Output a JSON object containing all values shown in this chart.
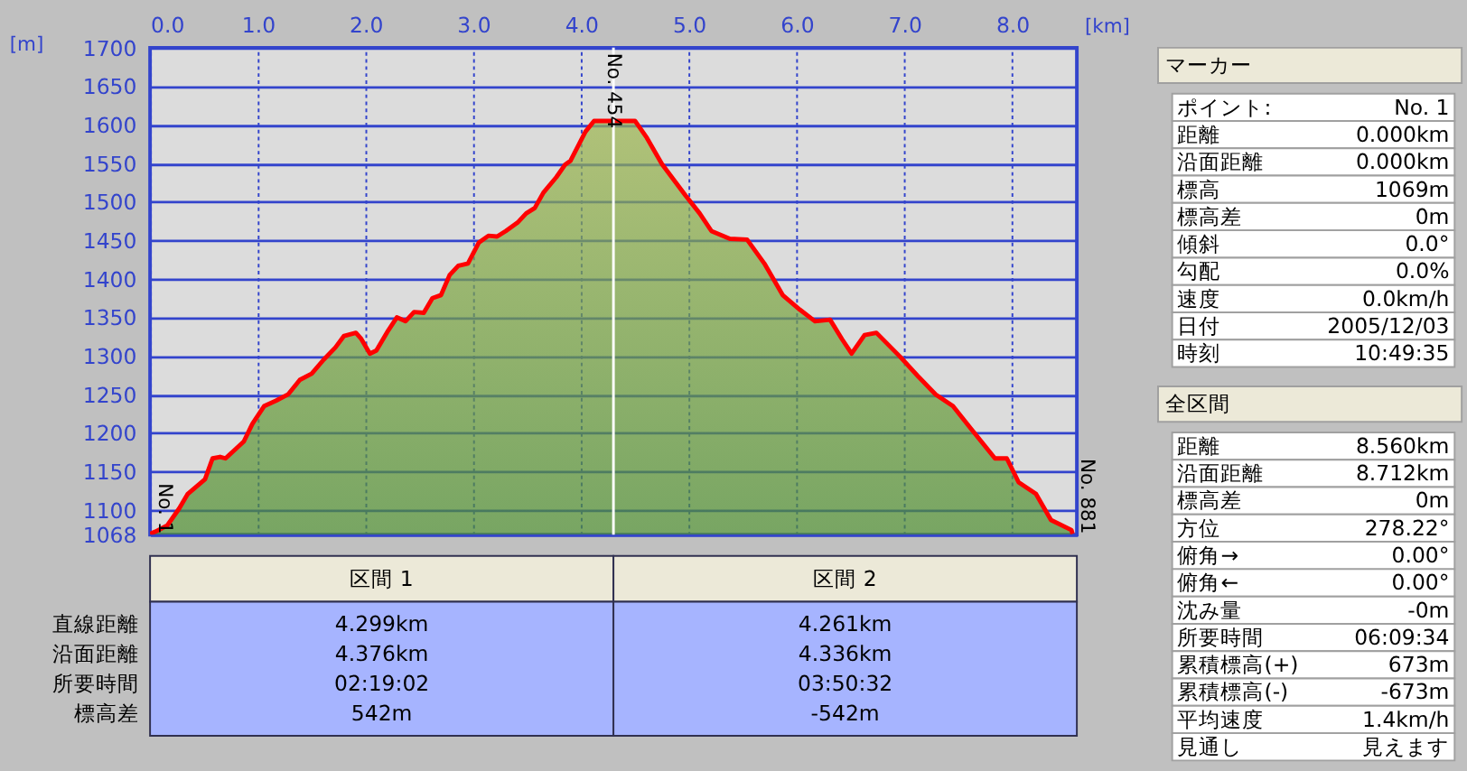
{
  "chart_data": [
    {
      "type": "area",
      "xlabel": "[km]",
      "ylabel": "[m]",
      "x": [
        0,
        0.05,
        0.16,
        0.27,
        0.35,
        0.51,
        0.58,
        0.65,
        0.7,
        0.87,
        0.95,
        1.06,
        1.17,
        1.28,
        1.39,
        1.5,
        1.61,
        1.72,
        1.8,
        1.91,
        1.96,
        2.04,
        2.1,
        2.21,
        2.29,
        2.37,
        2.45,
        2.54,
        2.62,
        2.7,
        2.78,
        2.86,
        2.95,
        3.05,
        3.14,
        3.22,
        3.3,
        3.41,
        3.49,
        3.57,
        3.65,
        3.77,
        3.85,
        3.9,
        4.04,
        4.12,
        4.5,
        4.61,
        4.75,
        4.97,
        5.1,
        5.21,
        5.38,
        5.54,
        5.7,
        5.87,
        6.03,
        6.17,
        6.31,
        6.42,
        6.51,
        6.63,
        6.74,
        6.96,
        7.13,
        7.29,
        7.45,
        7.62,
        7.84,
        7.95,
        8.06,
        8.22,
        8.36,
        8.55,
        8.56
      ],
      "series": [
        {
          "color": "#ff0000",
          "values": [
            1069,
            1072,
            1080,
            1102,
            1121,
            1140,
            1167,
            1169,
            1167,
            1189,
            1212,
            1235,
            1242,
            1250,
            1269,
            1277,
            1295,
            1311,
            1326,
            1330,
            1322,
            1303,
            1307,
            1333,
            1350,
            1345,
            1357,
            1356,
            1375,
            1379,
            1405,
            1417,
            1420,
            1447,
            1456,
            1455,
            1462,
            1473,
            1485,
            1492,
            1512,
            1532,
            1548,
            1553,
            1591,
            1605,
            1605,
            1583,
            1549,
            1508,
            1485,
            1462,
            1452,
            1451,
            1420,
            1379,
            1360,
            1345,
            1347,
            1322,
            1303,
            1327,
            1330,
            1299,
            1273,
            1250,
            1235,
            1205,
            1167,
            1167,
            1136,
            1121,
            1087,
            1074,
            1069
          ]
        }
      ],
      "xlim": [
        0,
        8.6
      ],
      "ylim": [
        1068,
        1700
      ],
      "xticks": [
        {
          "value": 0,
          "label": "0.0"
        },
        {
          "value": 1,
          "label": "1.0"
        },
        {
          "value": 2,
          "label": "2.0"
        },
        {
          "value": 3,
          "label": "3.0"
        },
        {
          "value": 4,
          "label": "4.0"
        },
        {
          "value": 5,
          "label": "5.0"
        },
        {
          "value": 6,
          "label": "6.0"
        },
        {
          "value": 7,
          "label": "7.0"
        },
        {
          "value": 8,
          "label": "8.0"
        }
      ],
      "yticks": [
        1068,
        1100,
        1150,
        1200,
        1250,
        1300,
        1350,
        1400,
        1450,
        1500,
        1550,
        1600,
        1650,
        1700
      ],
      "grid": true,
      "ref_lines": [
        {
          "axis": "x",
          "value": 4.3,
          "label": "No. 454",
          "color": "#ffffff"
        }
      ],
      "annotations": [
        {
          "text": "No. 1",
          "x": 0,
          "y": 1069
        },
        {
          "text": "No. 881",
          "x": 8.56,
          "y": 1069
        }
      ]
    },
    {
      "type": "other",
      "categories": [
        "区間 1",
        "区間 2"
      ],
      "annotations": [
        "直線距離",
        "4.299km",
        "4.261km",
        "沿面距離",
        "4.376km",
        "4.336km",
        "所要時間",
        "02:19:02",
        "03:50:32",
        "標高差",
        "542m",
        "-542m"
      ]
    },
    {
      "type": "other",
      "title": "マーカー",
      "annotations": [
        "ポイント:",
        "No. 1",
        "距離",
        "0.000km",
        "沿面距離",
        "0.000km",
        "標高",
        "1069m",
        "標高差",
        "0m",
        "傾斜",
        "0.0°",
        "勾配",
        "0.0%",
        "速度",
        "0.0km/h",
        "日付",
        "2005/12/03",
        "時刻",
        "10:49:35"
      ]
    },
    {
      "type": "other",
      "title": "全区間",
      "annotations": [
        "距離",
        "8.560km",
        "沿面距離",
        "8.712km",
        "標高差",
        "0m",
        "方位",
        "278.22°",
        "俯角→",
        "0.00°",
        "俯角←",
        "0.00°",
        "沈み量",
        "-0m",
        "所要時間",
        "06:09:34",
        "累積標高(+)",
        "673m",
        "累積標高(-)",
        "-673m",
        "平均速度",
        "1.4km/h",
        "見通し",
        "見えます"
      ]
    }
  ]
}
